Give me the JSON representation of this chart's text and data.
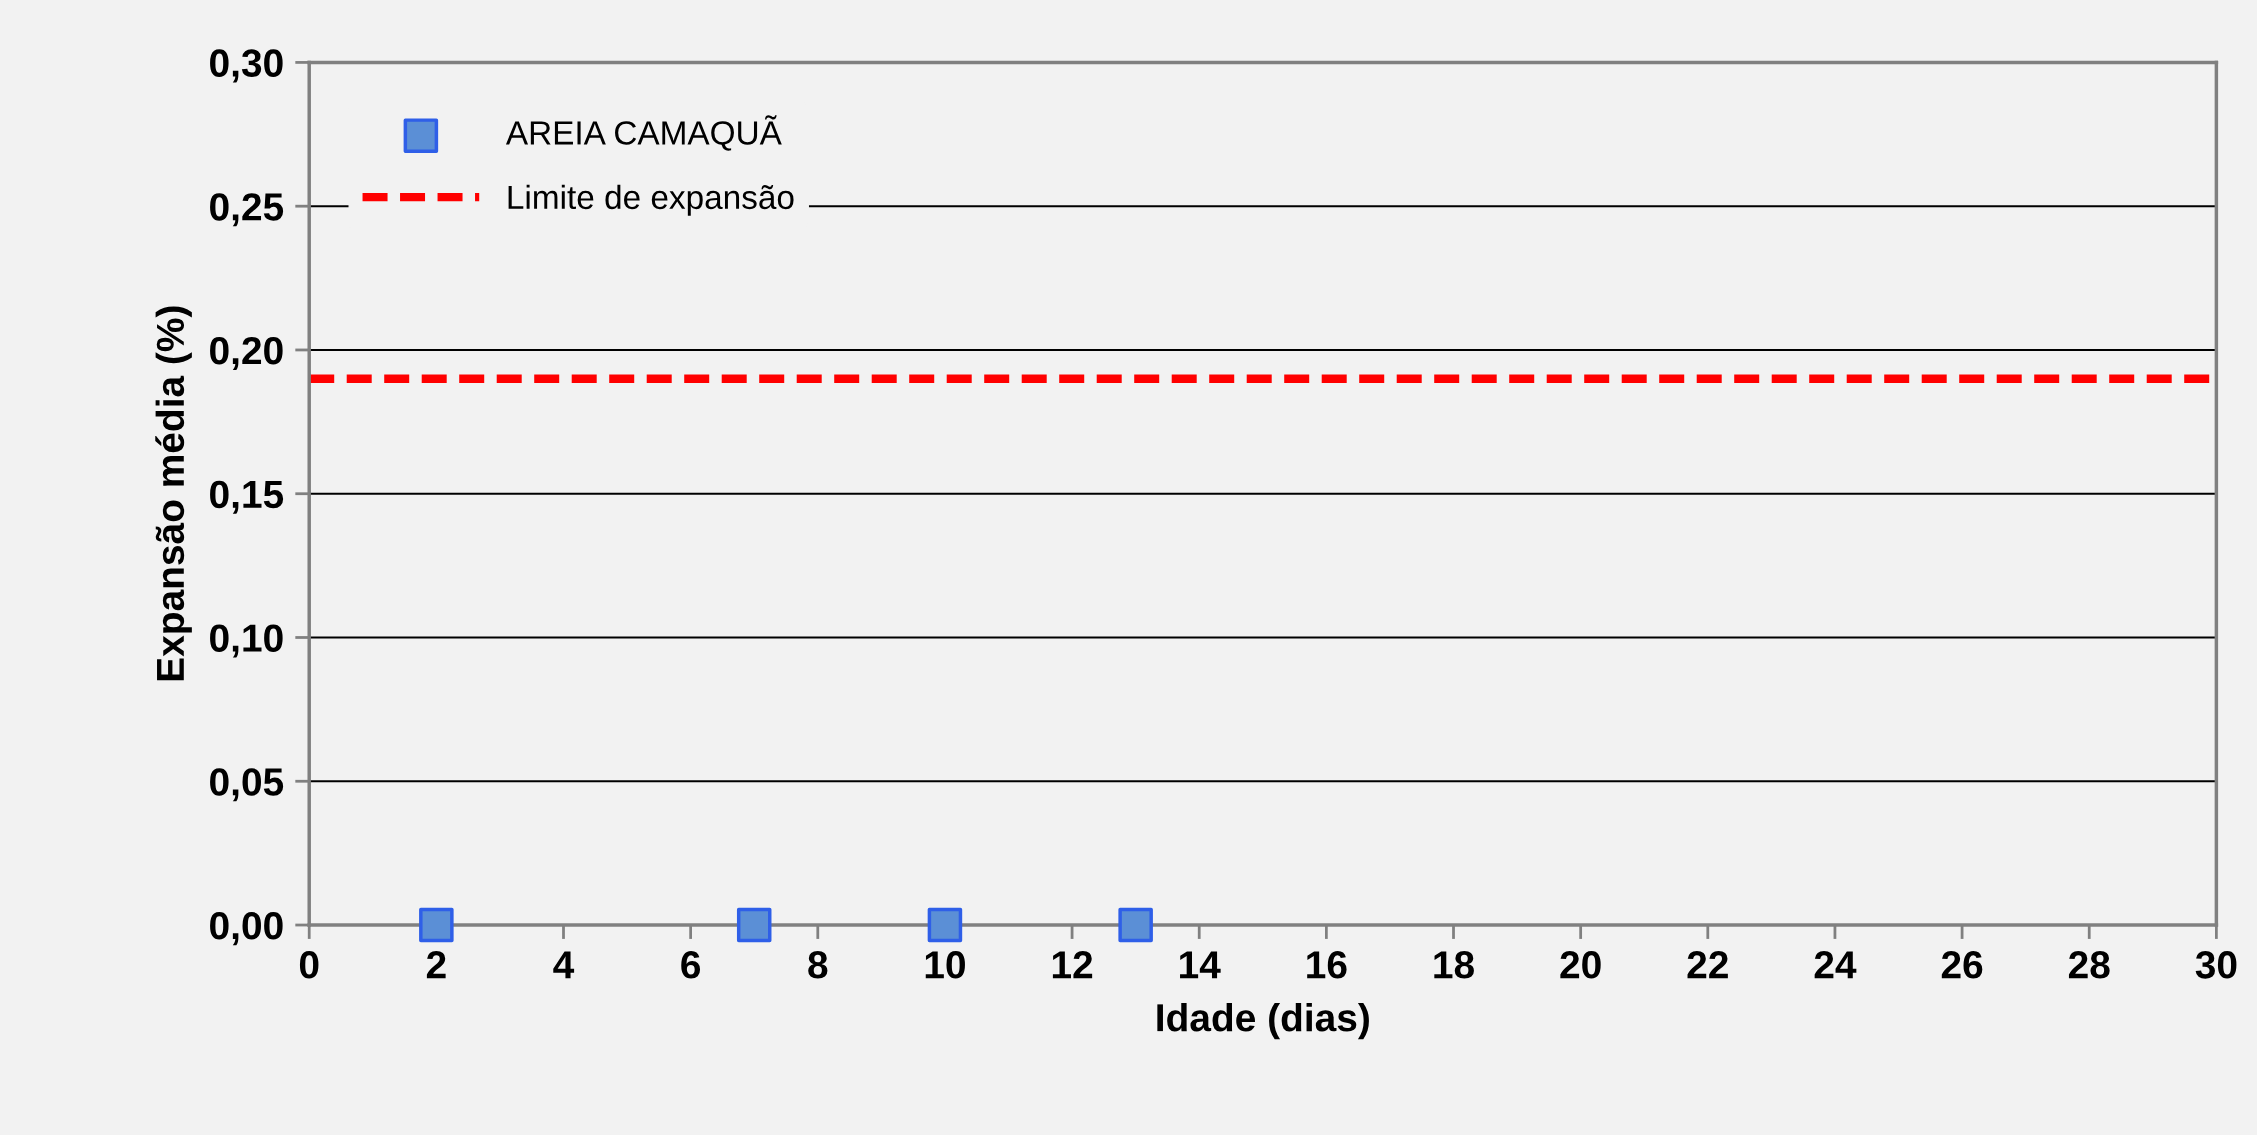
{
  "chart_data": {
    "type": "scatter",
    "xlabel": "Idade (dias)",
    "ylabel": "Expansão média (%)",
    "x": [
      2,
      7,
      10,
      13
    ],
    "series": [
      {
        "name": "AREIA CAMAQUÃ",
        "color": "#5b8fd6",
        "values": [
          0.0,
          0.0,
          0.0,
          0.0
        ]
      }
    ],
    "marker": "square",
    "ref_lines": [
      {
        "axis": "y",
        "value": 0.19,
        "label": "Limite de expansão",
        "color": "#ff0000",
        "line_style": "dashed"
      }
    ],
    "xlim": [
      0,
      30
    ],
    "xticks": [
      0,
      2,
      4,
      6,
      8,
      10,
      12,
      14,
      16,
      18,
      20,
      22,
      24,
      26,
      28,
      30
    ],
    "ylim": [
      0,
      0.3
    ],
    "yticks": [
      {
        "value": 0,
        "label": "0,00"
      },
      {
        "value": 0.05,
        "label": "0,05"
      },
      {
        "value": 0.1,
        "label": "0,10"
      },
      {
        "value": 0.15,
        "label": "0,15"
      },
      {
        "value": 0.2,
        "label": "0,20"
      },
      {
        "value": 0.25,
        "label": "0,25"
      },
      {
        "value": 0.3,
        "label": "0,30"
      }
    ],
    "grid": "y",
    "legend": "top left"
  }
}
